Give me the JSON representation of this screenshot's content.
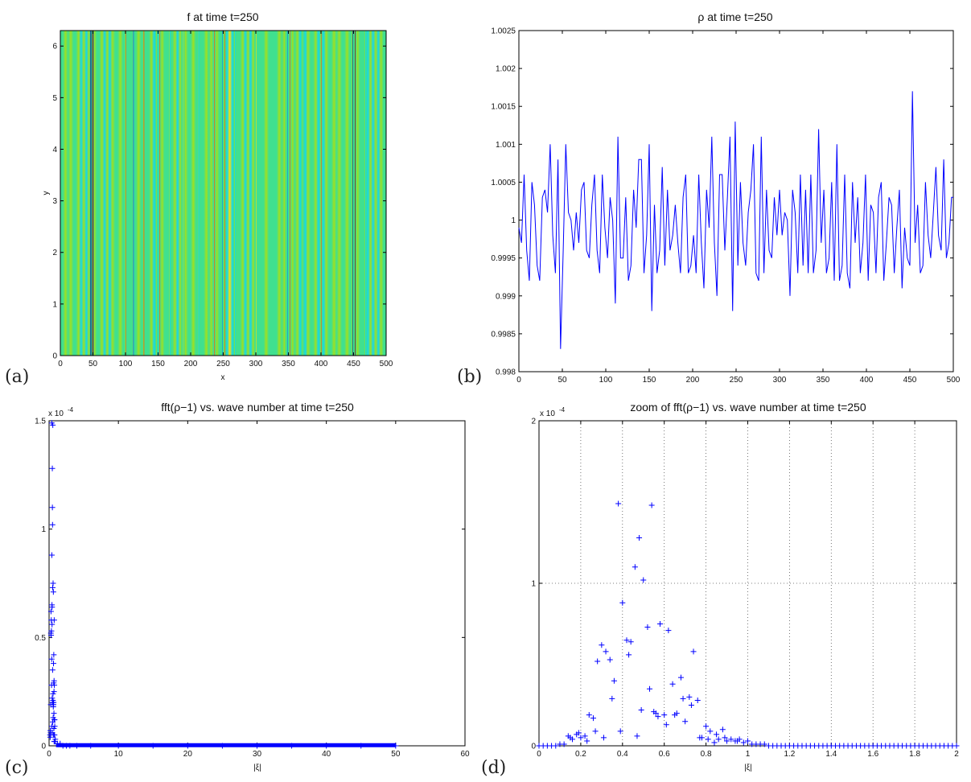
{
  "chart_data": [
    {
      "id": "a",
      "panel_label": "(a)",
      "type": "heatmap",
      "title": "f at time t=250",
      "xlabel": "x",
      "ylabel": "y",
      "xlim": [
        0,
        500
      ],
      "ylim": [
        0,
        6.3
      ],
      "xticks": [
        0,
        50,
        100,
        150,
        200,
        250,
        300,
        350,
        400,
        450,
        500
      ],
      "yticks": [
        0,
        1,
        2,
        3,
        4,
        5,
        6
      ],
      "colormap": [
        "#00008f",
        "#0070ff",
        "#10d8ef",
        "#40e08f",
        "#9fe020",
        "#ffe000",
        "#ff6000",
        "#8f0000"
      ],
      "stripes_x": [
        47,
        50,
        100,
        112,
        128,
        148,
        152,
        168,
        188,
        212,
        236,
        248,
        252,
        268,
        300,
        348,
        352,
        372,
        400,
        448,
        452,
        468
      ],
      "stripes_level": [
        0.06,
        0.94,
        0.85,
        0.2,
        0.82,
        0.22,
        0.83,
        0.25,
        0.78,
        0.3,
        0.8,
        0.1,
        0.92,
        0.3,
        0.74,
        0.2,
        0.86,
        0.28,
        0.8,
        0.05,
        0.95,
        0.28
      ]
    },
    {
      "id": "b",
      "panel_label": "(b)",
      "type": "line",
      "title": "ρ at time t=250",
      "xlim": [
        0,
        500
      ],
      "ylim": [
        0.998,
        1.0025
      ],
      "xticks": [
        0,
        50,
        100,
        150,
        200,
        250,
        300,
        350,
        400,
        450,
        500
      ],
      "yticks": [
        "0.998",
        "0.9985",
        "0.999",
        "0.9995",
        "1",
        "1.0005",
        "1.001",
        "1.0015",
        "1.002",
        "1.0025"
      ],
      "color": "#0000ff",
      "x": [
        0,
        3,
        6,
        9,
        12,
        15,
        18,
        21,
        24,
        27,
        30,
        33,
        36,
        39,
        42,
        45,
        48,
        51,
        54,
        57,
        60,
        63,
        66,
        69,
        72,
        75,
        78,
        81,
        84,
        87,
        90,
        93,
        96,
        99,
        102,
        105,
        108,
        111,
        114,
        117,
        120,
        123,
        126,
        129,
        132,
        135,
        138,
        141,
        144,
        147,
        150,
        153,
        156,
        159,
        162,
        165,
        168,
        171,
        174,
        177,
        180,
        183,
        186,
        189,
        192,
        195,
        198,
        201,
        204,
        207,
        210,
        213,
        216,
        219,
        222,
        225,
        228,
        231,
        234,
        237,
        240,
        243,
        246,
        249,
        252,
        255,
        258,
        261,
        264,
        267,
        270,
        273,
        276,
        279,
        282,
        285,
        288,
        291,
        294,
        297,
        300,
        303,
        306,
        309,
        312,
        315,
        318,
        321,
        324,
        327,
        330,
        333,
        336,
        339,
        342,
        345,
        348,
        351,
        354,
        357,
        360,
        363,
        366,
        369,
        372,
        375,
        378,
        381,
        384,
        387,
        390,
        393,
        396,
        399,
        402,
        405,
        408,
        411,
        414,
        417,
        420,
        423,
        426,
        429,
        432,
        435,
        438,
        441,
        444,
        447,
        450,
        453,
        456,
        459,
        462,
        465,
        468,
        471,
        474,
        477,
        480,
        483,
        486,
        489,
        492,
        495,
        498,
        500
      ],
      "y": [
        0.9999,
        0.9997,
        1.0006,
        0.9996,
        0.9992,
        1.0005,
        1.0002,
        0.9994,
        0.9992,
        1.0003,
        1.0004,
        1.0001,
        1.001,
        0.9998,
        0.9993,
        1.0008,
        0.9983,
        0.9996,
        1.001,
        1.0001,
        1.0,
        0.9996,
        1.0001,
        0.9997,
        1.0004,
        1.0005,
        0.9996,
        0.9995,
        1.0002,
        1.0006,
        0.9996,
        0.9993,
        1.0006,
        0.9999,
        0.9995,
        1.0003,
        1.0,
        0.9989,
        1.0011,
        0.9995,
        0.9995,
        1.0003,
        0.9992,
        0.9994,
        1.0004,
        0.9999,
        1.0008,
        1.0008,
        0.9993,
        0.9998,
        1.001,
        0.9988,
        1.0002,
        0.9993,
        0.9996,
        1.0007,
        0.9994,
        1.0004,
        0.9996,
        0.9998,
        1.0002,
        0.9997,
        0.9993,
        1.0003,
        1.0006,
        0.9993,
        0.9994,
        0.9998,
        0.9993,
        1.0006,
        0.9997,
        0.9991,
        1.0004,
        0.9999,
        1.0011,
        0.9997,
        0.999,
        1.0006,
        1.0006,
        0.9996,
        1.0003,
        1.0011,
        0.9988,
        1.0013,
        0.9994,
        1.0005,
        0.9997,
        0.9994,
        1.0001,
        1.0004,
        1.001,
        0.9993,
        0.9992,
        1.0011,
        0.9993,
        1.0004,
        0.9996,
        0.9995,
        1.0003,
        0.9998,
        1.0004,
        0.9998,
        1.0001,
        1.0,
        0.999,
        1.0004,
        1.0001,
        0.9993,
        1.0006,
        0.9994,
        1.0004,
        0.9993,
        1.0006,
        0.9993,
        0.9996,
        1.0012,
        0.9997,
        1.0004,
        0.9993,
        0.9995,
        1.0005,
        0.9992,
        1.001,
        0.9992,
        0.9994,
        1.0006,
        0.9993,
        0.9991,
        1.0005,
        0.9997,
        1.0003,
        0.9993,
        0.9997,
        1.0006,
        0.9992,
        1.0002,
        1.0001,
        0.9993,
        1.0003,
        1.0005,
        0.9992,
        0.9997,
        1.0003,
        1.0002,
        0.9993,
        0.9999,
        1.0004,
        0.9991,
        0.9999,
        0.9995,
        0.9994,
        1.0017,
        0.9997,
        1.0002,
        0.9993,
        0.9994,
        1.0005,
        0.9998,
        0.9995,
        1.0001,
        1.0007,
        0.9998,
        0.9996,
        1.0008,
        0.9995,
        0.9997,
        1.0003,
        1.0003
      ]
    },
    {
      "id": "c",
      "panel_label": "(c)",
      "type": "scatter",
      "title": "fft(ρ−1) vs. wave number at time t=250",
      "xlabel": "|ξ|",
      "exponent_label": "x 10",
      "exponent": "-4",
      "xlim": [
        0,
        60
      ],
      "ylim": [
        0,
        1.5
      ],
      "xticks": [
        0,
        10,
        20,
        30,
        40,
        50,
        60
      ],
      "yticks": [
        "0",
        "0.5",
        "1",
        "1.5"
      ],
      "color": "#0000ff",
      "x": [
        0.14,
        0.16,
        0.18,
        0.2,
        0.22,
        0.24,
        0.26,
        0.28,
        0.3,
        0.32,
        0.34,
        0.36,
        0.38,
        0.4,
        0.42,
        0.44,
        0.46,
        0.48,
        0.5,
        0.52,
        0.54,
        0.56,
        0.58,
        0.6,
        0.62,
        0.64,
        0.66,
        0.68,
        0.7,
        0.72,
        0.74,
        0.76,
        0.78,
        0.8,
        0.82,
        0.86,
        0.9,
        0.39,
        0.43,
        0.47,
        0.51,
        0.55,
        0.59,
        0.63,
        0.67,
        0.71,
        0.75,
        0.41,
        0.45,
        0.49,
        0.53,
        0.57,
        0.61,
        0.65,
        0.69,
        0.73,
        0.77,
        1.2,
        1.6,
        2.0,
        2.5,
        3.0,
        4,
        6,
        10,
        15,
        20,
        25,
        30,
        35,
        40,
        45,
        50
      ],
      "y": [
        0.05,
        0.04,
        0.07,
        0.05,
        0.06,
        0.19,
        0.52,
        0.62,
        0.51,
        0.58,
        0.53,
        0.28,
        0.4,
        0.88,
        0.65,
        0.64,
        0.06,
        1.1,
        1.02,
        0.73,
        1.48,
        0.21,
        0.75,
        0.19,
        0.71,
        0.38,
        0.2,
        0.42,
        0.15,
        0.3,
        0.58,
        0.28,
        0.05,
        0.12,
        0.09,
        0.02,
        0.03,
        1.49,
        0.56,
        1.28,
        0.35,
        0.2,
        0.13,
        0.19,
        0.29,
        0.25,
        0.12,
        0.09,
        0.22,
        0.2,
        0.11,
        0.24,
        0.18,
        0.05,
        0.08,
        0.02,
        0.05,
        0.01,
        0.01,
        0.0,
        0.0,
        0.0,
        0.0,
        0.0,
        0.0,
        0.0,
        0.0,
        0.0,
        0.0,
        0.0,
        0.0,
        0.0,
        0.0
      ]
    },
    {
      "id": "d",
      "panel_label": "(d)",
      "type": "scatter",
      "title": "zoom of fft(ρ−1) vs. wave number at time t=250",
      "xlabel": "|ξ|",
      "exponent_label": "x 10",
      "exponent": "-4",
      "xlim": [
        0,
        2
      ],
      "ylim": [
        0,
        2
      ],
      "xticks": [
        "0",
        "0.2",
        "0.4",
        "0.6",
        "0.8",
        "1",
        "1.2",
        "1.4",
        "1.6",
        "1.8",
        "2"
      ],
      "yticks": [
        "0",
        "1",
        "2"
      ],
      "grid": true,
      "color": "#0000ff",
      "x": [
        0.0,
        0.02,
        0.04,
        0.06,
        0.08,
        0.1,
        0.12,
        0.14,
        0.16,
        0.18,
        0.2,
        0.22,
        0.24,
        0.26,
        0.28,
        0.3,
        0.32,
        0.34,
        0.36,
        0.38,
        0.39,
        0.4,
        0.42,
        0.44,
        0.46,
        0.47,
        0.48,
        0.5,
        0.52,
        0.54,
        0.55,
        0.56,
        0.58,
        0.6,
        0.62,
        0.64,
        0.66,
        0.68,
        0.7,
        0.72,
        0.74,
        0.76,
        0.78,
        0.8,
        0.82,
        0.84,
        0.86,
        0.88,
        0.9,
        0.92,
        0.94,
        0.96,
        0.98,
        1.0,
        0.15,
        0.19,
        0.23,
        0.27,
        0.31,
        0.35,
        0.43,
        0.49,
        0.53,
        0.57,
        0.61,
        0.65,
        0.69,
        0.73,
        0.77,
        0.81,
        0.85,
        0.89,
        0.95,
        1.02,
        1.04,
        1.06,
        1.08,
        1.1,
        1.12,
        1.14,
        1.16,
        1.18,
        1.2,
        1.22,
        1.24,
        1.26,
        1.28,
        1.3,
        1.32,
        1.34,
        1.36,
        1.38,
        1.4,
        1.42,
        1.44,
        1.46,
        1.48,
        1.5,
        1.52,
        1.54,
        1.56,
        1.58,
        1.6,
        1.62,
        1.64,
        1.66,
        1.68,
        1.7,
        1.72,
        1.74,
        1.76,
        1.78,
        1.8,
        1.82,
        1.84,
        1.86,
        1.88,
        1.9,
        1.92,
        1.94,
        1.96,
        1.98,
        2.0
      ],
      "y": [
        0.0,
        0.0,
        0.0,
        0.0,
        0.0,
        0.01,
        0.01,
        0.06,
        0.04,
        0.07,
        0.05,
        0.06,
        0.19,
        0.17,
        0.52,
        0.62,
        0.58,
        0.53,
        0.4,
        1.49,
        0.09,
        0.88,
        0.65,
        0.64,
        1.1,
        0.06,
        1.28,
        1.02,
        0.73,
        1.48,
        0.21,
        0.2,
        0.75,
        0.19,
        0.71,
        0.38,
        0.2,
        0.42,
        0.15,
        0.3,
        0.58,
        0.28,
        0.05,
        0.12,
        0.09,
        0.02,
        0.04,
        0.1,
        0.03,
        0.04,
        0.03,
        0.04,
        0.02,
        0.03,
        0.05,
        0.08,
        0.03,
        0.09,
        0.05,
        0.29,
        0.56,
        0.22,
        0.35,
        0.18,
        0.13,
        0.19,
        0.29,
        0.25,
        0.05,
        0.04,
        0.07,
        0.05,
        0.03,
        0.01,
        0.01,
        0.01,
        0.01,
        0.0,
        0.0,
        0.0,
        0.0,
        0.0,
        0.0,
        0.0,
        0.0,
        0.0,
        0.0,
        0.0,
        0.0,
        0.0,
        0.0,
        0.0,
        0.0,
        0.0,
        0.0,
        0.0,
        0.0,
        0.0,
        0.0,
        0.0,
        0.0,
        0.0,
        0.0,
        0.0,
        0.0,
        0.0,
        0.0,
        0.0,
        0.0,
        0.0,
        0.0,
        0.0,
        0.0,
        0.0,
        0.0,
        0.0,
        0.0,
        0.0,
        0.0,
        0.0,
        0.0,
        0.0,
        0.0
      ]
    }
  ]
}
